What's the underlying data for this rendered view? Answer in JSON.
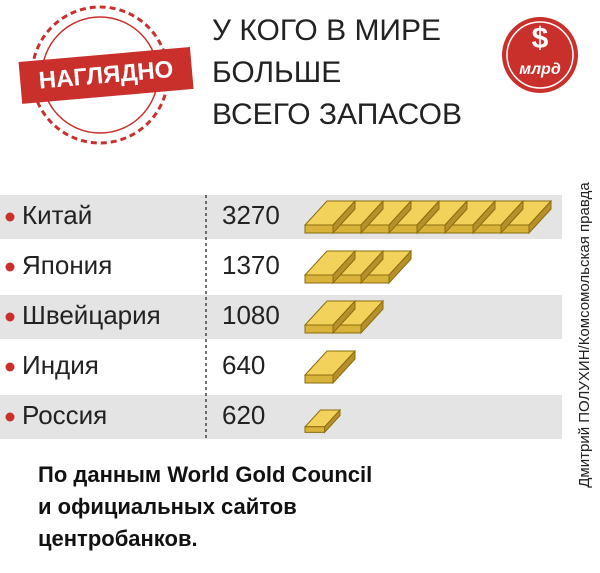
{
  "stamp": "НАГЛЯДНО",
  "badge": {
    "symbol": "$",
    "unit": "млрд"
  },
  "credit": "Дмитрий ПОЛУХИН/Комсомольская правда",
  "chart_data": {
    "type": "pictogram",
    "title_lines": [
      "У КОГО В МИРЕ",
      "БОЛЬШЕ",
      "ВСЕГО ЗАПАСОВ"
    ],
    "categories": [
      "Китай",
      "Япония",
      "Швейцария",
      "Индия",
      "Россия"
    ],
    "values": [
      3270,
      1370,
      1080,
      640,
      620
    ],
    "color": "#f2d25a",
    "note_lines": [
      "По данным World Gold Council",
      "и официальных сайтов",
      "центробанков."
    ]
  }
}
